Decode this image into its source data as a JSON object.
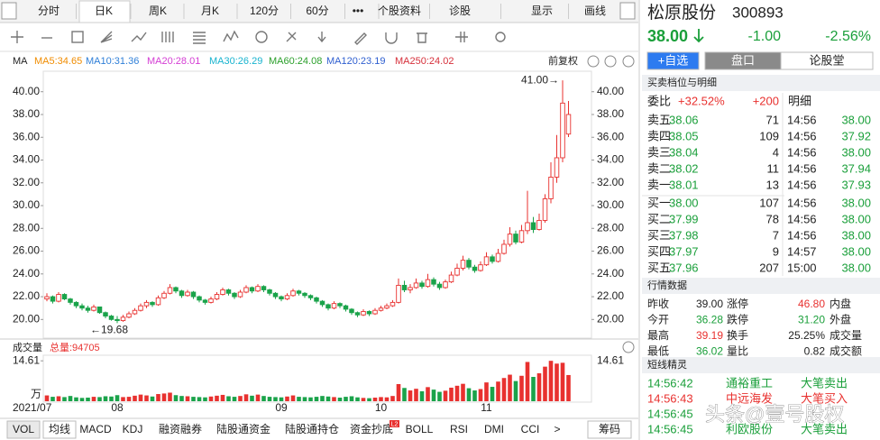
{
  "toolbar": {
    "tabs": [
      "分时",
      "日K",
      "周K",
      "月K",
      "120分",
      "60分",
      "•••",
      "个股资料",
      "诊股",
      "显示",
      "画线"
    ]
  },
  "chart_data": {
    "type": "candlestick",
    "indicator": "MA",
    "adjust": "前复权",
    "ma_legend": [
      {
        "label": "MA5:34.65",
        "color": "#f08c00"
      },
      {
        "label": "MA10:31.36",
        "color": "#2f7fd8"
      },
      {
        "label": "MA20:28.01",
        "color": "#d43dd4"
      },
      {
        "label": "MA30:26.29",
        "color": "#17b3cf"
      },
      {
        "label": "MA60:24.08",
        "color": "#2a9f2a"
      },
      {
        "label": "MA120:23.19",
        "color": "#2f5fd0"
      },
      {
        "label": "MA250:24.02",
        "color": "#d6303b"
      }
    ],
    "up_color": "#e8312f",
    "down_color": "#1aa34a",
    "categories": [
      "2021/07",
      null,
      null,
      null,
      null,
      null,
      null,
      null,
      null,
      null,
      null,
      null,
      "08",
      null,
      null,
      null,
      null,
      null,
      null,
      null,
      null,
      null,
      null,
      null,
      null,
      null,
      null,
      null,
      null,
      null,
      null,
      null,
      null,
      null,
      null,
      null,
      null,
      null,
      null,
      null,
      "09",
      null,
      null,
      null,
      null,
      null,
      null,
      null,
      null,
      null,
      null,
      null,
      null,
      null,
      null,
      null,
      null,
      "10",
      null,
      null,
      null,
      null,
      null,
      null,
      null,
      null,
      null,
      null,
      null,
      null,
      null,
      null,
      null,
      null,
      null,
      "11",
      null,
      null,
      null,
      null,
      null,
      null,
      null,
      null,
      null,
      null,
      null,
      null,
      null,
      null
    ],
    "ohlc": [
      [
        21.8,
        22.3,
        21.6,
        22.0
      ],
      [
        22.0,
        22.1,
        21.4,
        21.6
      ],
      [
        21.6,
        22.4,
        21.5,
        22.2
      ],
      [
        22.2,
        22.3,
        21.7,
        21.8
      ],
      [
        21.8,
        21.9,
        21.3,
        21.5
      ],
      [
        21.5,
        21.6,
        21.0,
        21.2
      ],
      [
        21.2,
        21.4,
        20.8,
        21.0
      ],
      [
        21.0,
        21.2,
        20.6,
        20.8
      ],
      [
        20.8,
        21.3,
        20.7,
        21.1
      ],
      [
        21.1,
        21.1,
        20.5,
        20.6
      ],
      [
        20.6,
        20.7,
        20.1,
        20.3
      ],
      [
        20.3,
        20.4,
        19.9,
        20.0
      ],
      [
        20.0,
        20.3,
        19.68,
        19.9
      ],
      [
        19.9,
        20.4,
        19.8,
        20.2
      ],
      [
        20.2,
        20.7,
        20.1,
        20.5
      ],
      [
        20.5,
        21.0,
        20.4,
        20.8
      ],
      [
        20.8,
        21.4,
        20.7,
        21.2
      ],
      [
        21.2,
        21.7,
        21.0,
        21.5
      ],
      [
        21.5,
        21.6,
        21.1,
        21.3
      ],
      [
        21.3,
        22.1,
        21.2,
        21.9
      ],
      [
        21.9,
        22.5,
        21.8,
        22.3
      ],
      [
        22.3,
        23.1,
        22.2,
        22.8
      ],
      [
        22.8,
        22.9,
        22.3,
        22.5
      ],
      [
        22.5,
        22.6,
        21.9,
        22.1
      ],
      [
        22.1,
        22.6,
        22.0,
        22.4
      ],
      [
        22.4,
        22.5,
        21.8,
        22.0
      ],
      [
        22.0,
        22.1,
        21.5,
        21.7
      ],
      [
        21.7,
        21.8,
        21.3,
        21.5
      ],
      [
        21.5,
        22.0,
        21.4,
        21.8
      ],
      [
        21.8,
        22.4,
        21.7,
        22.2
      ],
      [
        22.2,
        22.8,
        22.1,
        22.6
      ],
      [
        22.6,
        22.7,
        22.1,
        22.3
      ],
      [
        22.3,
        22.4,
        21.8,
        22.0
      ],
      [
        22.0,
        22.6,
        21.9,
        22.4
      ],
      [
        22.4,
        23.0,
        22.3,
        22.8
      ],
      [
        22.8,
        22.9,
        22.3,
        22.5
      ],
      [
        22.5,
        23.1,
        22.4,
        22.9
      ],
      [
        22.9,
        23.0,
        22.4,
        22.6
      ],
      [
        22.6,
        22.7,
        22.1,
        22.3
      ],
      [
        22.3,
        22.4,
        21.8,
        22.0
      ],
      [
        22.0,
        22.1,
        21.6,
        21.8
      ],
      [
        21.8,
        22.3,
        21.7,
        22.1
      ],
      [
        22.1,
        22.7,
        22.0,
        22.5
      ],
      [
        22.5,
        22.6,
        22.1,
        22.3
      ],
      [
        22.3,
        22.4,
        21.9,
        22.1
      ],
      [
        22.1,
        22.2,
        21.7,
        21.9
      ],
      [
        21.9,
        22.0,
        21.4,
        21.6
      ],
      [
        21.6,
        21.7,
        21.1,
        21.3
      ],
      [
        21.3,
        21.4,
        20.8,
        21.0
      ],
      [
        21.0,
        21.6,
        20.9,
        21.4
      ],
      [
        21.4,
        21.5,
        21.0,
        21.2
      ],
      [
        21.2,
        21.3,
        20.7,
        20.9
      ],
      [
        20.9,
        21.0,
        20.4,
        20.6
      ],
      [
        20.6,
        20.7,
        20.2,
        20.4
      ],
      [
        20.4,
        20.9,
        20.3,
        20.7
      ],
      [
        20.7,
        20.8,
        20.3,
        20.5
      ],
      [
        20.5,
        21.0,
        20.4,
        20.8
      ],
      [
        20.8,
        21.2,
        20.7,
        21.0
      ],
      [
        21.0,
        21.4,
        20.9,
        21.2
      ],
      [
        21.2,
        21.7,
        21.1,
        21.5
      ],
      [
        21.5,
        23.6,
        21.4,
        23.0
      ],
      [
        23.0,
        23.4,
        22.4,
        22.6
      ],
      [
        22.6,
        23.1,
        22.3,
        22.8
      ],
      [
        22.8,
        23.6,
        22.7,
        23.2
      ],
      [
        23.2,
        23.4,
        22.7,
        22.9
      ],
      [
        22.9,
        24.0,
        22.8,
        23.5
      ],
      [
        23.5,
        23.7,
        22.9,
        23.1
      ],
      [
        23.1,
        23.3,
        22.6,
        22.8
      ],
      [
        22.8,
        23.5,
        22.7,
        23.3
      ],
      [
        23.3,
        24.2,
        23.2,
        23.9
      ],
      [
        23.9,
        24.9,
        23.8,
        24.5
      ],
      [
        24.5,
        25.6,
        24.3,
        25.2
      ],
      [
        25.2,
        25.4,
        24.4,
        24.6
      ],
      [
        24.6,
        24.8,
        24.1,
        24.3
      ],
      [
        24.3,
        25.1,
        24.2,
        24.8
      ],
      [
        24.8,
        25.9,
        24.7,
        25.5
      ],
      [
        25.5,
        25.7,
        24.9,
        25.1
      ],
      [
        25.1,
        26.2,
        25.0,
        25.8
      ],
      [
        25.8,
        27.0,
        25.7,
        26.6
      ],
      [
        26.6,
        28.1,
        26.4,
        27.5
      ],
      [
        27.5,
        27.8,
        26.6,
        26.8
      ],
      [
        26.8,
        28.3,
        26.7,
        27.8
      ],
      [
        27.8,
        31.3,
        27.5,
        28.5
      ],
      [
        28.5,
        29.0,
        27.6,
        27.9
      ],
      [
        27.9,
        29.3,
        27.8,
        28.7
      ],
      [
        28.7,
        31.0,
        28.5,
        30.6
      ],
      [
        30.6,
        33.8,
        30.2,
        32.5
      ],
      [
        32.5,
        36.2,
        32.0,
        34.2
      ],
      [
        34.2,
        41.0,
        33.8,
        39.0
      ],
      [
        36.28,
        39.19,
        36.02,
        38.0
      ]
    ],
    "ylim": [
      18.6,
      41.8
    ],
    "yticks": [
      {
        "value": 20,
        "label": "20.00"
      },
      {
        "value": 22,
        "label": "22.00"
      },
      {
        "value": 24,
        "label": "24.00"
      },
      {
        "value": 26,
        "label": "26.00"
      },
      {
        "value": 28,
        "label": "28.00"
      },
      {
        "value": 30,
        "label": "30.00"
      },
      {
        "value": 32,
        "label": "32.00"
      },
      {
        "value": 34,
        "label": "34.00"
      },
      {
        "value": 36,
        "label": "36.00"
      },
      {
        "value": 38,
        "label": "38.00"
      },
      {
        "value": 40,
        "label": "40.00"
      }
    ],
    "annotations": [
      {
        "index": 88,
        "value": 41.0,
        "label": "41.00→"
      },
      {
        "index": 12,
        "value": 19.68,
        "label": "←19.68"
      }
    ],
    "volume": {
      "title": "成交量",
      "total": "总量:94705",
      "unit": "万",
      "values": [
        2.1,
        1.6,
        1.8,
        1.5,
        1.9,
        1.4,
        1.2,
        1.3,
        1.6,
        1.5,
        1.8,
        1.7,
        2.2,
        1.5,
        1.6,
        2.0,
        2.4,
        2.1,
        1.7,
        2.6,
        2.8,
        3.1,
        2.2,
        1.9,
        1.8,
        1.6,
        1.5,
        1.4,
        1.7,
        2.0,
        2.3,
        1.8,
        1.6,
        1.9,
        2.5,
        2.0,
        2.4,
        1.9,
        1.6,
        1.5,
        1.4,
        1.7,
        2.1,
        1.6,
        1.5,
        1.4,
        1.6,
        1.9,
        1.7,
        1.5,
        1.3,
        1.6,
        1.8,
        1.4,
        1.2,
        1.1,
        1.3,
        1.5,
        1.4,
        1.9,
        6.2,
        4.8,
        3.9,
        4.5,
        3.6,
        5.1,
        4.2,
        3.4,
        3.8,
        4.9,
        5.6,
        6.3,
        4.7,
        3.9,
        4.4,
        6.8,
        5.2,
        7.1,
        8.4,
        9.6,
        7.3,
        9.2,
        14.2,
        8.8,
        10.1,
        12.5,
        14.61,
        13.6,
        13.9,
        9.47
      ],
      "ylim": [
        0,
        16.3
      ],
      "yticks": [
        14.61
      ]
    }
  },
  "indicator_tabs": {
    "tabs": [
      "VOL",
      "均线",
      "MACD",
      "KDJ",
      "融资融券",
      "陆股通资金",
      "陆股通持仓",
      "资金抄底",
      "BOLL",
      "RSI",
      "DMI",
      "CCI",
      ">"
    ],
    "badge": "L2",
    "right": "筹码"
  },
  "quote": {
    "name": "松原股份",
    "code": "300893",
    "price": "38.00",
    "change": "-1.00",
    "change_pct": "-2.56%",
    "buttons": [
      "+自选",
      "盘口",
      "论股堂"
    ]
  },
  "order_book": {
    "title": "买卖档位与明细",
    "ratio_label": "委比",
    "ratio": "+32.52%",
    "diff": "+200",
    "detail_label": "明细",
    "asks": [
      [
        "卖五",
        "38.06",
        "71"
      ],
      [
        "卖四",
        "38.05",
        "109"
      ],
      [
        "卖三",
        "38.04",
        "4"
      ],
      [
        "卖二",
        "38.02",
        "11"
      ],
      [
        "卖一",
        "38.01",
        "13"
      ]
    ],
    "bids": [
      [
        "买一",
        "38.00",
        "107"
      ],
      [
        "买二",
        "37.99",
        "78"
      ],
      [
        "买三",
        "37.98",
        "7"
      ],
      [
        "买四",
        "37.97",
        "9"
      ],
      [
        "买五",
        "37.96",
        "207"
      ]
    ],
    "trades": [
      [
        "14:56",
        "38.00"
      ],
      [
        "14:56",
        "37.92"
      ],
      [
        "14:56",
        "38.00"
      ],
      [
        "14:56",
        "37.94"
      ],
      [
        "14:56",
        "37.93"
      ],
      [
        "14:56",
        "38.00"
      ],
      [
        "14:56",
        "38.00"
      ],
      [
        "14:56",
        "38.00"
      ],
      [
        "14:57",
        "38.00"
      ],
      [
        "15:00",
        "38.00"
      ]
    ]
  },
  "market": {
    "title": "行情数据",
    "rows": [
      [
        "昨收",
        "39.00",
        "涨停",
        "46.80",
        "内盘"
      ],
      [
        "今开",
        "36.28",
        "跌停",
        "31.20",
        "外盘"
      ],
      [
        "最高",
        "39.19",
        "换手",
        "25.25%",
        "成交量"
      ],
      [
        "最低",
        "36.02",
        "量比",
        "0.82",
        "成交额"
      ]
    ]
  },
  "elves": {
    "title": "短线精灵",
    "rows": [
      [
        "14:56:42",
        "通裕重工",
        "大笔卖出"
      ],
      [
        "14:56:43",
        "中远海发",
        "大笔买入"
      ],
      [
        "14:56:45"
      ],
      [
        "14:56:45",
        "利欧股份",
        "大笔卖出"
      ]
    ]
  },
  "watermark": "头条@壹号股权"
}
